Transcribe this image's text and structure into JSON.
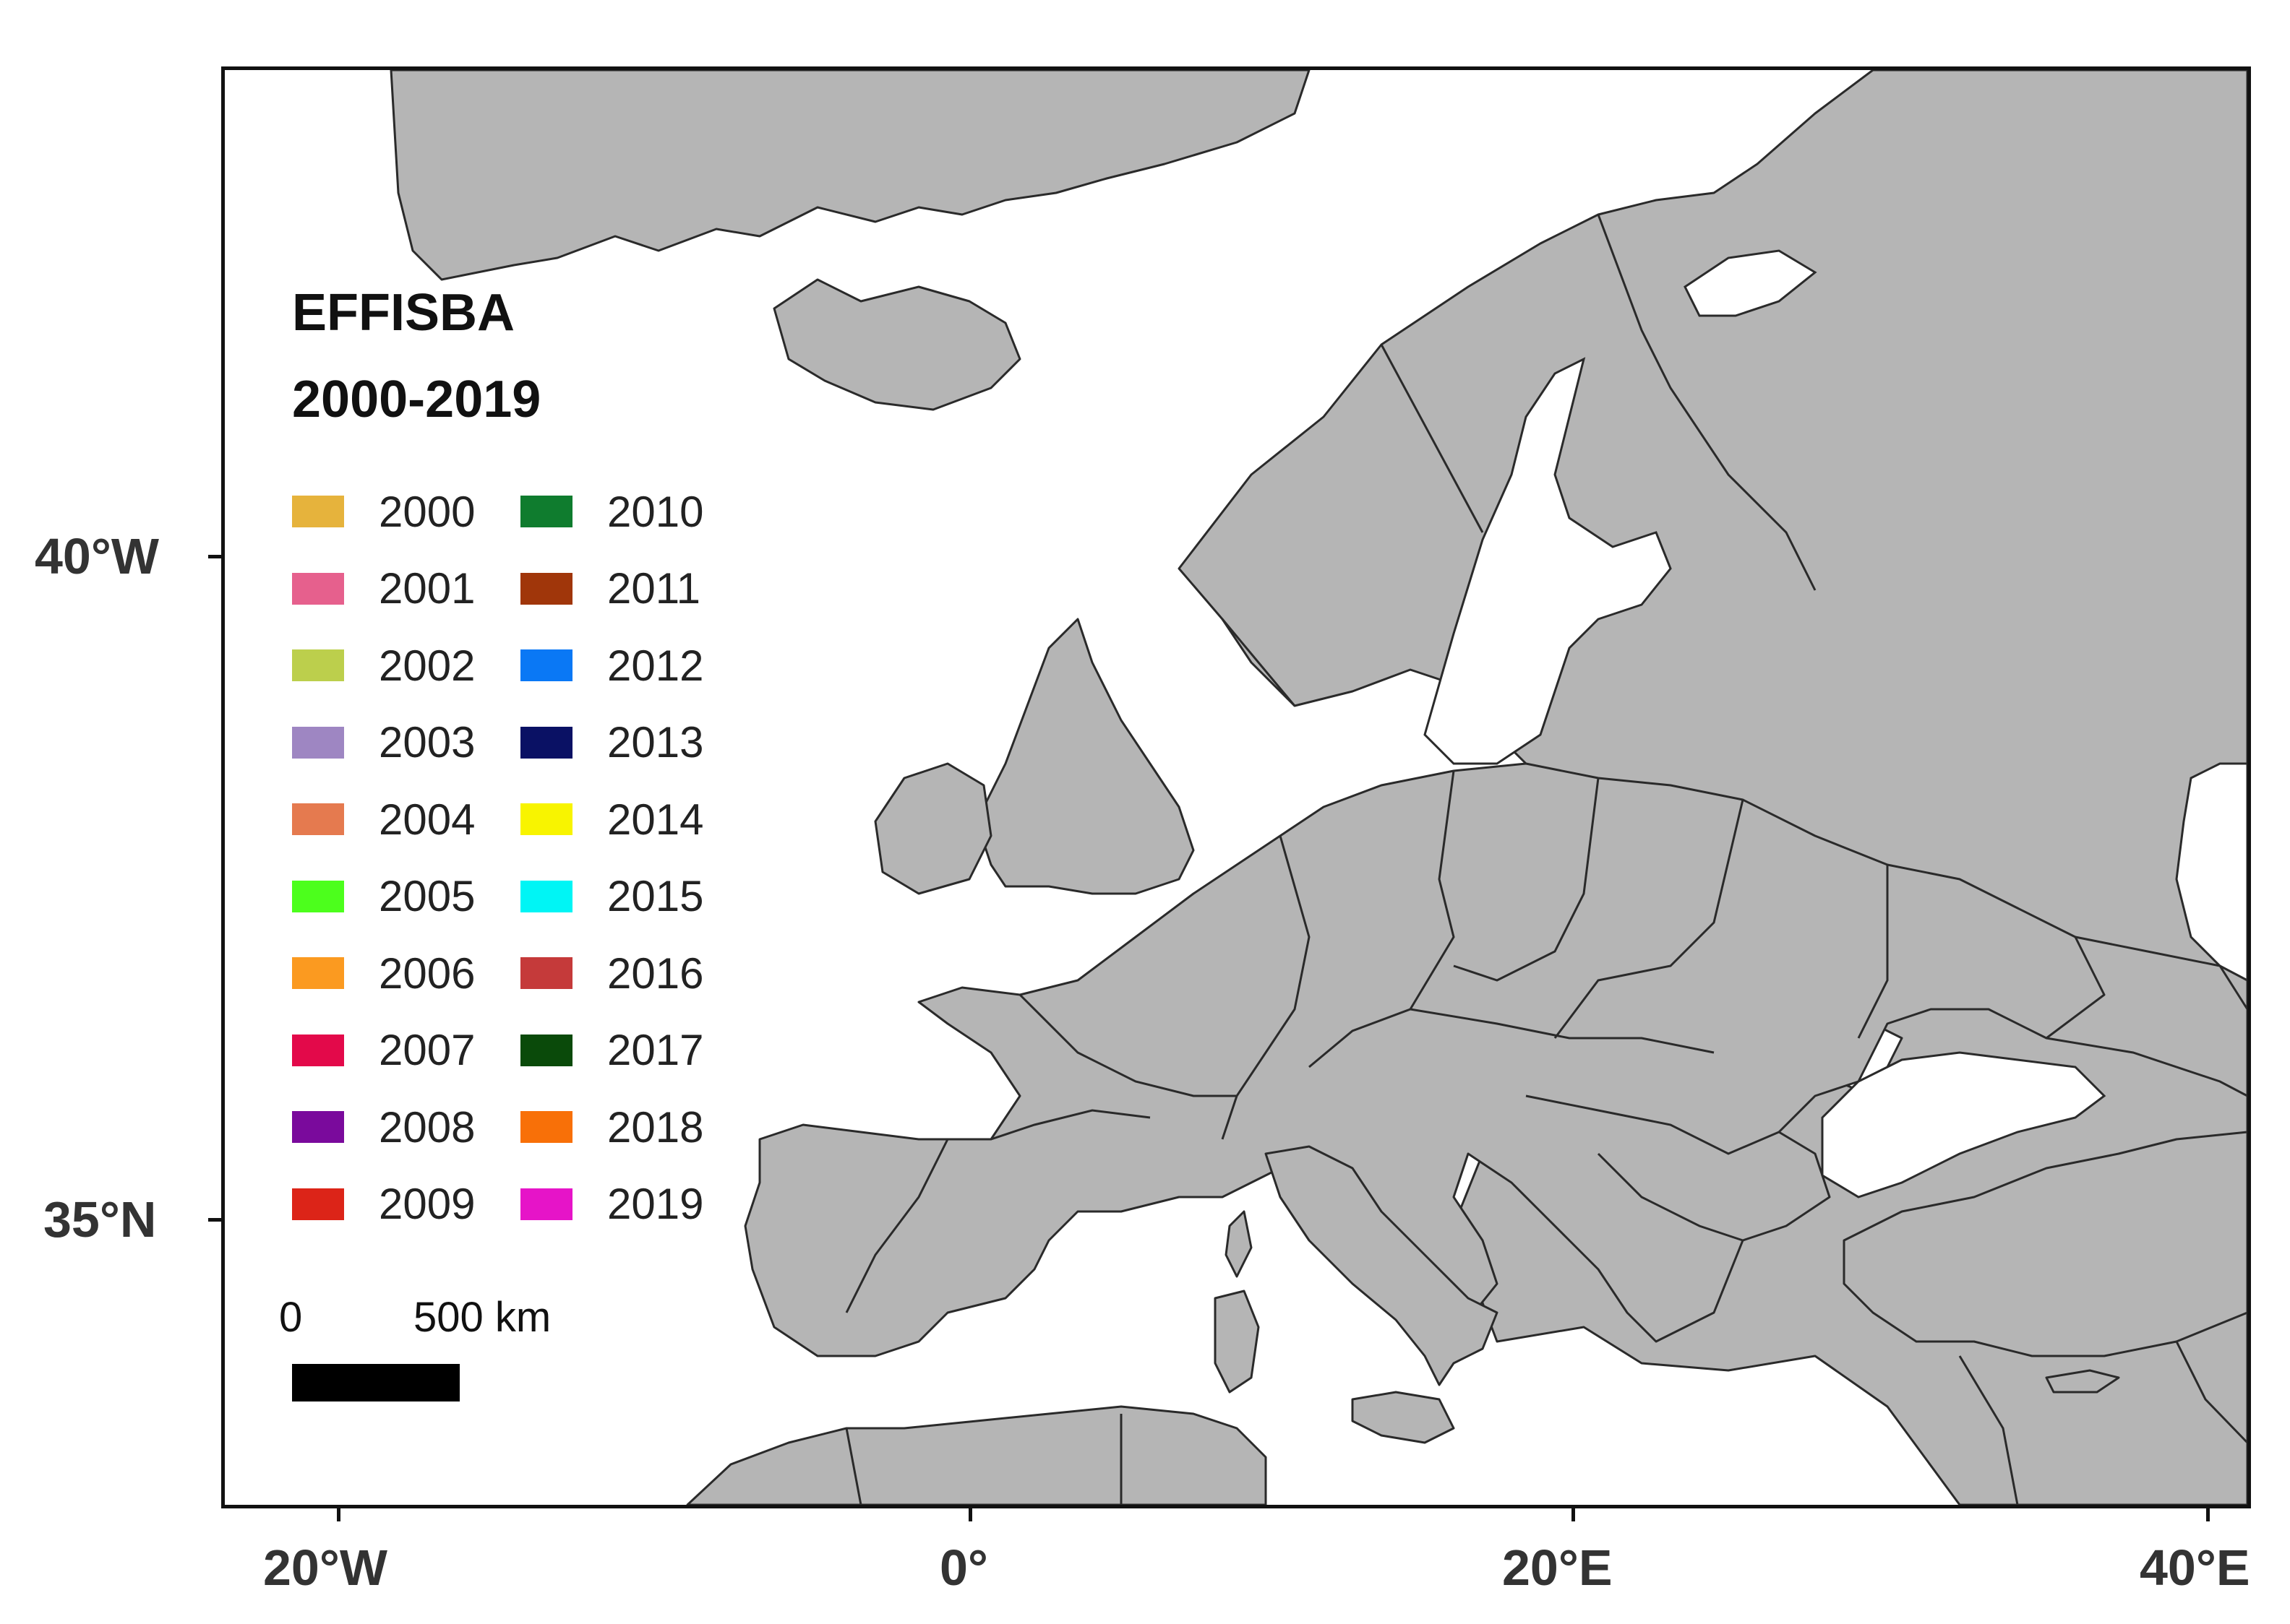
{
  "map": {
    "title_line1": "EFFISBA",
    "title_line2": "2000-2019",
    "land_color": "#b5b5b5",
    "sea_color": "#ffffff",
    "border_color": "#2a2a2a"
  },
  "axes": {
    "y_ticks": [
      "40°W",
      "35°N"
    ],
    "x_ticks": [
      "20°W",
      "0°",
      "20°E",
      "40°E"
    ]
  },
  "legend": {
    "items": [
      {
        "year": "2000",
        "color": "#e6b33c"
      },
      {
        "year": "2001",
        "color": "#e6608d"
      },
      {
        "year": "2002",
        "color": "#bccf4c"
      },
      {
        "year": "2003",
        "color": "#9e86c2"
      },
      {
        "year": "2004",
        "color": "#e57a4f"
      },
      {
        "year": "2005",
        "color": "#4cff1c"
      },
      {
        "year": "2006",
        "color": "#fb9a20"
      },
      {
        "year": "2007",
        "color": "#e3094a"
      },
      {
        "year": "2008",
        "color": "#7a0a9c"
      },
      {
        "year": "2009",
        "color": "#dc2418"
      },
      {
        "year": "2010",
        "color": "#0f7c2e"
      },
      {
        "year": "2011",
        "color": "#a0360a"
      },
      {
        "year": "2012",
        "color": "#0a78f5"
      },
      {
        "year": "2013",
        "color": "#0a1164"
      },
      {
        "year": "2014",
        "color": "#f8f400"
      },
      {
        "year": "2015",
        "color": "#00f5f5"
      },
      {
        "year": "2016",
        "color": "#c53a3a"
      },
      {
        "year": "2017",
        "color": "#0a4a0a"
      },
      {
        "year": "2018",
        "color": "#f87008"
      },
      {
        "year": "2019",
        "color": "#e614c8"
      }
    ]
  },
  "scale": {
    "start_label": "0",
    "end_label": "500 km"
  }
}
